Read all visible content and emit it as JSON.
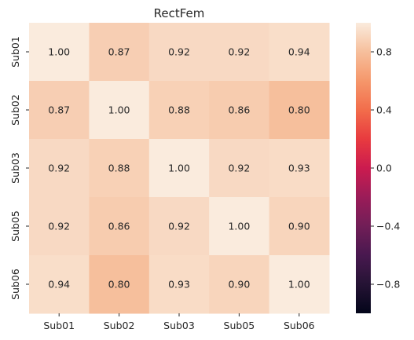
{
  "chart_data": {
    "type": "heatmap",
    "title": "RectFem",
    "xlabel": "",
    "ylabel": "",
    "x_categories": [
      "Sub01",
      "Sub02",
      "Sub03",
      "Sub05",
      "Sub06"
    ],
    "y_categories": [
      "Sub01",
      "Sub02",
      "Sub03",
      "Sub05",
      "Sub06"
    ],
    "values": [
      [
        1.0,
        0.87,
        0.92,
        0.92,
        0.94
      ],
      [
        0.87,
        1.0,
        0.88,
        0.86,
        0.8
      ],
      [
        0.92,
        0.88,
        1.0,
        0.92,
        0.93
      ],
      [
        0.92,
        0.86,
        0.92,
        1.0,
        0.9
      ],
      [
        0.94,
        0.8,
        0.93,
        0.9,
        1.0
      ]
    ],
    "value_format": "0.00",
    "colorbar": {
      "range": [
        -1,
        1
      ],
      "ticks": [
        0.8,
        0.4,
        0.0,
        -0.4,
        -0.8
      ],
      "tick_labels": [
        "0.8",
        "0.4",
        "0.0",
        "−0.4",
        "−0.8"
      ],
      "colormap": "rocket"
    },
    "grid": false
  }
}
